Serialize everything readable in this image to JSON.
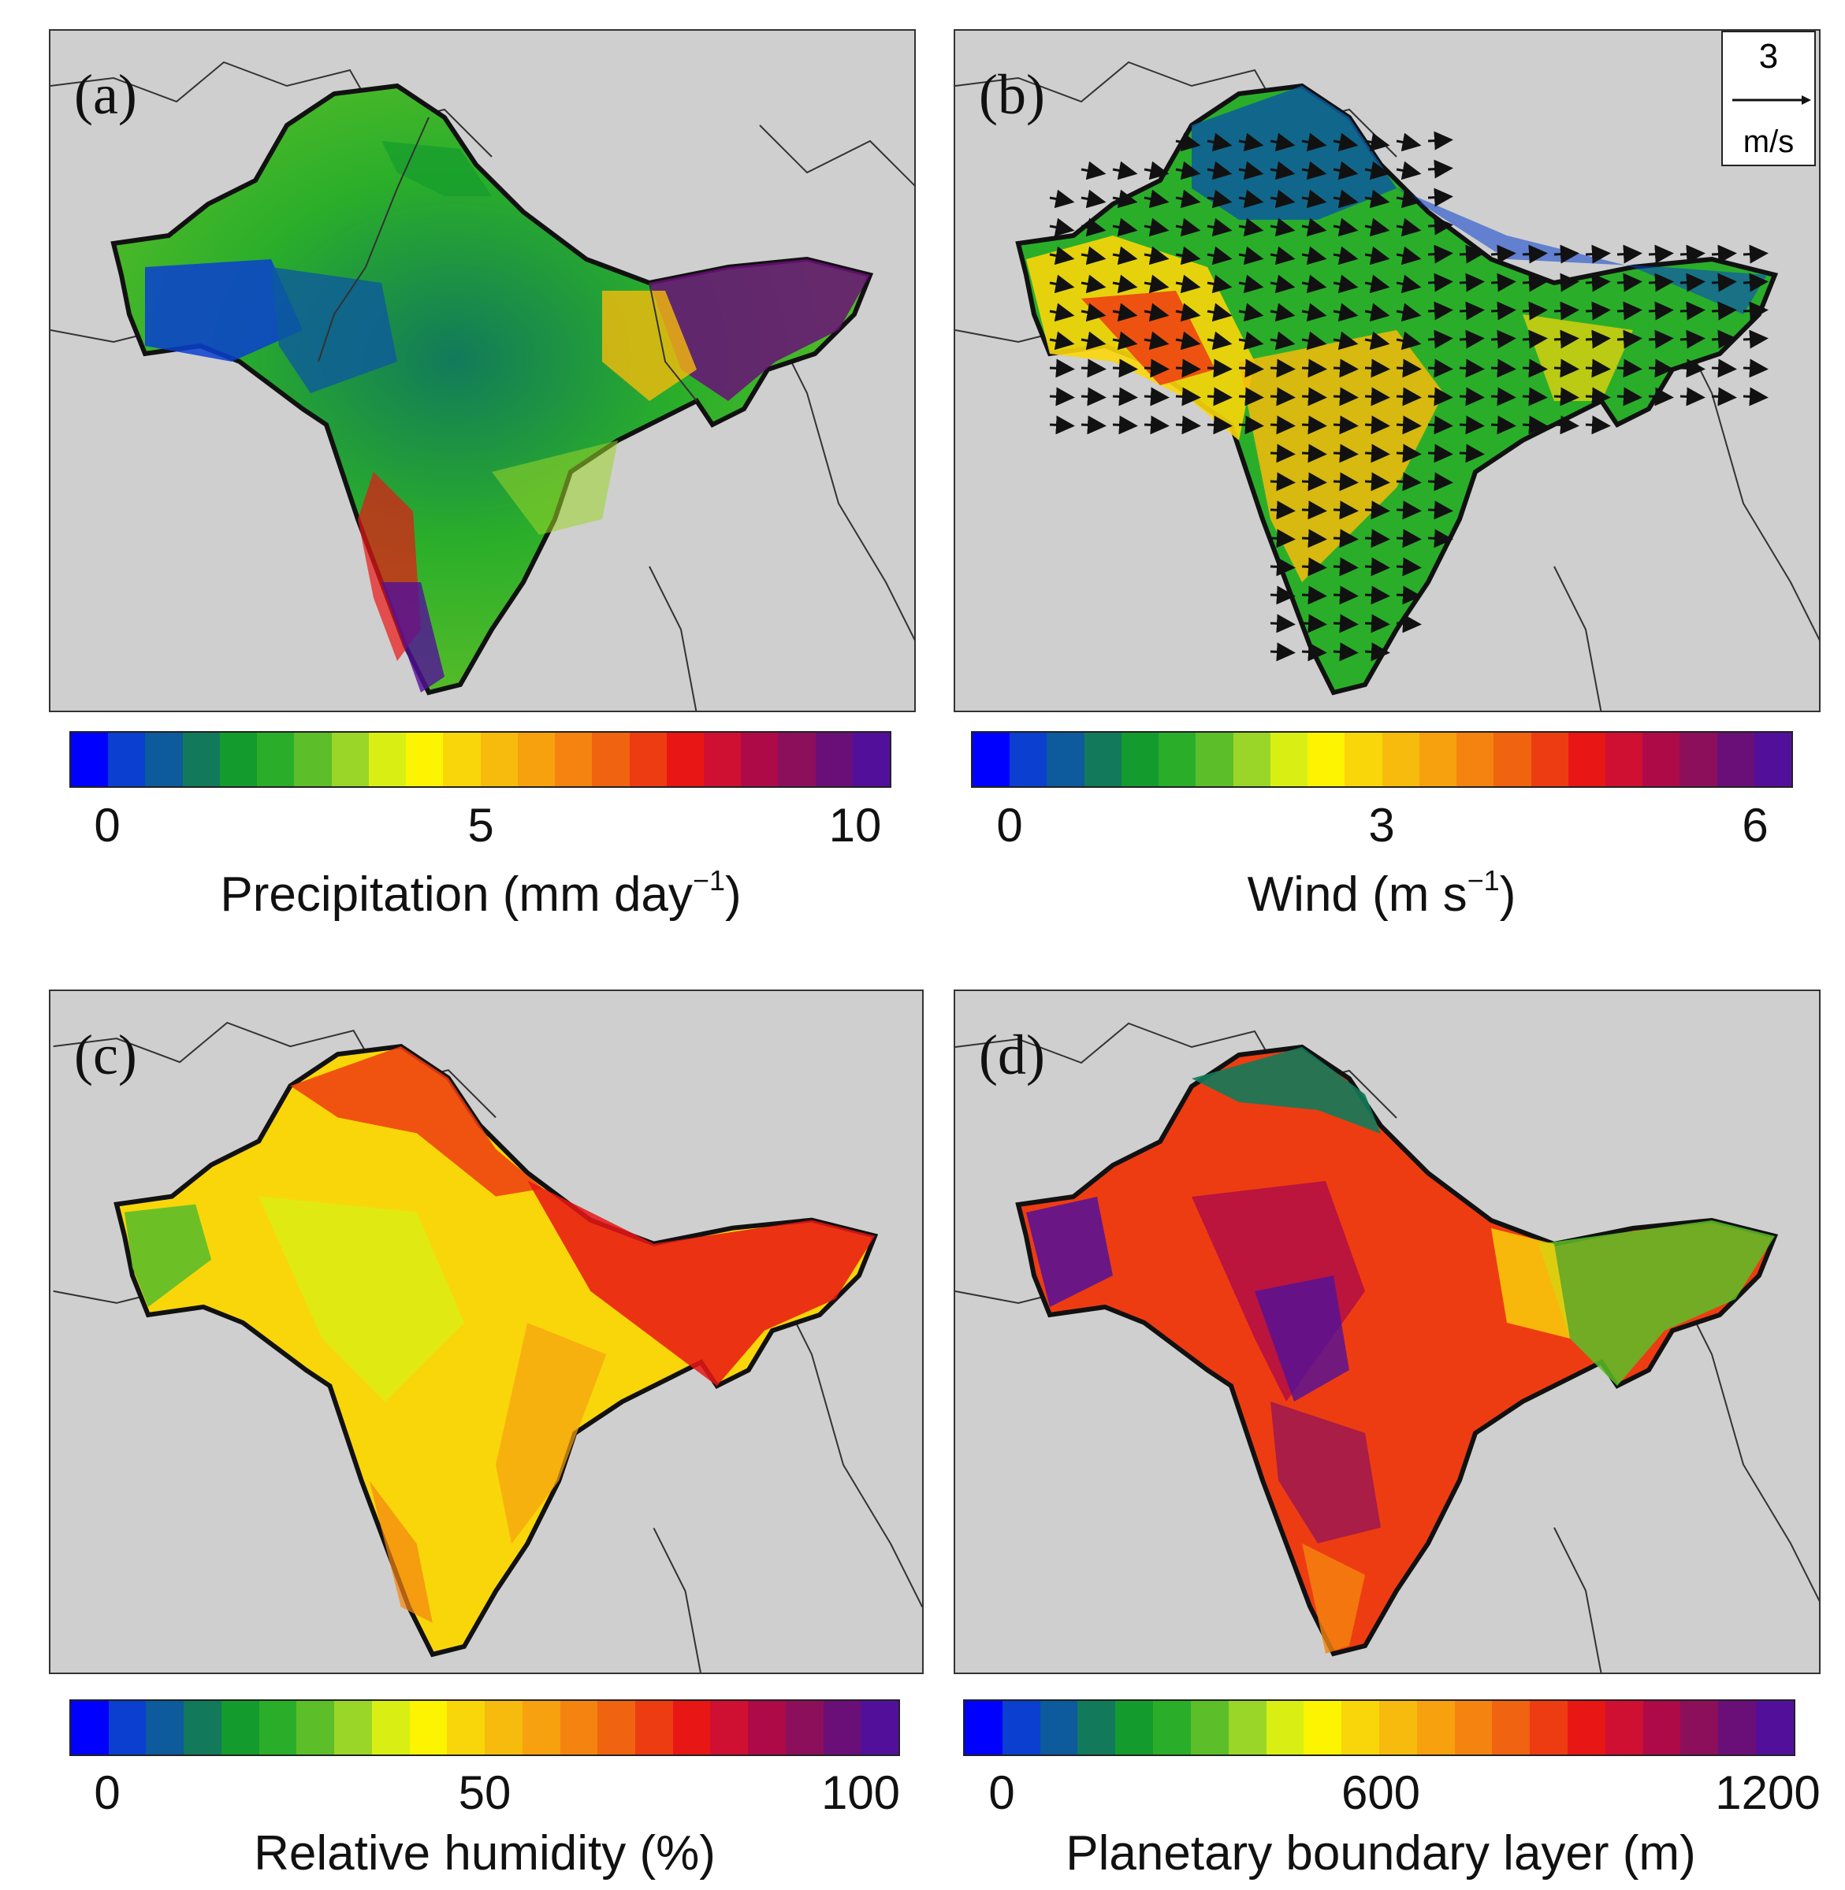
{
  "panels": [
    {
      "label": "(a)",
      "colorbar_title_main": "Precipitation (mm day",
      "colorbar_title_sup": "−1",
      "colorbar_title_end": ")",
      "ticks": [
        "0",
        "5",
        "10"
      ],
      "scheme": "precip"
    },
    {
      "label": "(b)",
      "colorbar_title_main": "Wind (m s",
      "colorbar_title_sup": "−1",
      "colorbar_title_end": ")",
      "ticks": [
        "0",
        "3",
        "6"
      ],
      "scheme": "wind"
    },
    {
      "label": "(c)",
      "colorbar_title_main": "Relative humidity (%)",
      "colorbar_title_sup": "",
      "colorbar_title_end": "",
      "ticks": [
        "0",
        "50",
        "100"
      ],
      "scheme": "rh"
    },
    {
      "label": "(d)",
      "colorbar_title_main": "Planetary boundary layer (m)",
      "colorbar_title_sup": "",
      "colorbar_title_end": "",
      "ticks": [
        "0",
        "600",
        "1200"
      ],
      "scheme": "pbl"
    }
  ],
  "wind_legend": {
    "value": "3",
    "unit": "m/s"
  },
  "colormap": [
    "#0000ff",
    "#0a3fd0",
    "#0d5a9c",
    "#127a5a",
    "#149b2e",
    "#2aae2a",
    "#5cbe28",
    "#9ad628",
    "#d9ef14",
    "#fcf400",
    "#f9d60a",
    "#f6bb0c",
    "#f7a10f",
    "#f4840f",
    "#f06310",
    "#ee3c12",
    "#e91616",
    "#cf1032",
    "#ae0a48",
    "#8c0f5c",
    "#6a0f78",
    "#52109a"
  ],
  "colors": {
    "land_mask_bg": "#cfcfcf",
    "border": "#111111"
  }
}
